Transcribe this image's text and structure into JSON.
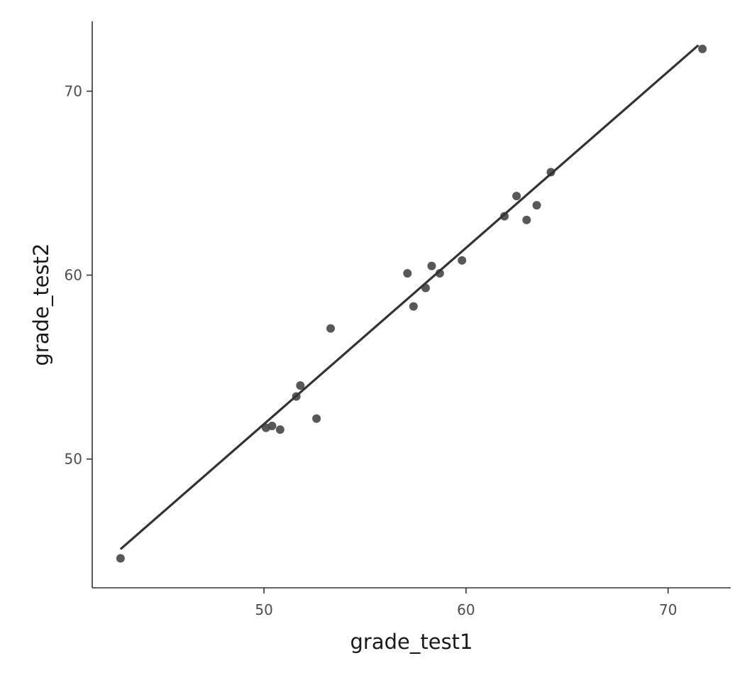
{
  "chart_data": {
    "type": "scatter",
    "title": "",
    "xlabel": "grade_test1",
    "ylabel": "grade_test2",
    "xlim": [
      41.5,
      73.1
    ],
    "ylim": [
      43.0,
      73.8
    ],
    "xticks": [
      50,
      60,
      70
    ],
    "yticks": [
      50,
      60,
      70
    ],
    "grid": false,
    "colors": {
      "points": "#4a4a4a",
      "line": "#333333",
      "axis": "#333333",
      "tick_text": "#4d4d4d"
    },
    "series": [
      {
        "type": "scatter",
        "points": [
          {
            "x": 42.9,
            "y": 44.6
          },
          {
            "x": 50.1,
            "y": 51.7
          },
          {
            "x": 50.4,
            "y": 51.8
          },
          {
            "x": 50.8,
            "y": 51.6
          },
          {
            "x": 51.6,
            "y": 53.4
          },
          {
            "x": 51.8,
            "y": 54.0
          },
          {
            "x": 52.6,
            "y": 52.2
          },
          {
            "x": 53.3,
            "y": 57.1
          },
          {
            "x": 57.1,
            "y": 60.1
          },
          {
            "x": 57.4,
            "y": 58.3
          },
          {
            "x": 58.0,
            "y": 59.3
          },
          {
            "x": 58.3,
            "y": 60.5
          },
          {
            "x": 58.7,
            "y": 60.1
          },
          {
            "x": 59.8,
            "y": 60.8
          },
          {
            "x": 61.9,
            "y": 63.2
          },
          {
            "x": 62.5,
            "y": 64.3
          },
          {
            "x": 63.0,
            "y": 63.0
          },
          {
            "x": 63.5,
            "y": 63.8
          },
          {
            "x": 64.2,
            "y": 65.6
          },
          {
            "x": 71.7,
            "y": 72.3
          }
        ]
      },
      {
        "type": "line",
        "points": [
          {
            "x": 42.9,
            "y": 45.1
          },
          {
            "x": 71.5,
            "y": 72.5
          }
        ]
      }
    ]
  }
}
